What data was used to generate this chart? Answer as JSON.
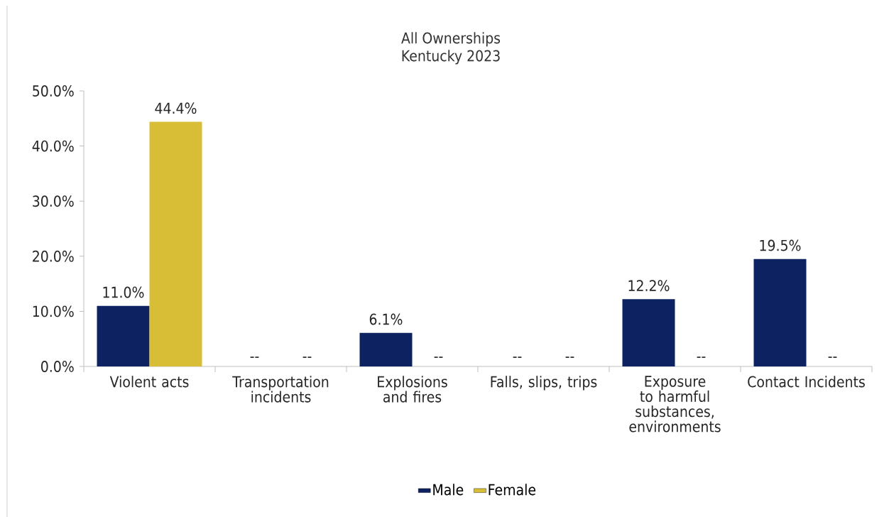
{
  "chart_data": {
    "type": "bar",
    "title": "All Ownerships",
    "subtitle": "Kentucky 2023",
    "categories": [
      "Violent acts",
      "Transportation incidents",
      "Explosions and fires",
      "Falls, slips, trips",
      "Exposure to harmful substances, environments",
      "Contact Incidents"
    ],
    "series": [
      {
        "name": "Male",
        "color": "#0d2260",
        "values": [
          11.0,
          null,
          6.1,
          null,
          12.2,
          19.5
        ],
        "value_labels": [
          "11.0%",
          "--",
          "6.1%",
          "--",
          "12.2%",
          "19.5%"
        ]
      },
      {
        "name": "Female",
        "color": "#d8be36",
        "values": [
          44.4,
          null,
          null,
          null,
          null,
          null
        ],
        "value_labels": [
          "44.4%",
          "--",
          "--",
          "--",
          "--",
          "--"
        ]
      }
    ],
    "ylim": [
      0,
      50
    ],
    "yticks": [
      {
        "value": 0,
        "label": "0.0%"
      },
      {
        "value": 10,
        "label": "10.0%"
      },
      {
        "value": 20,
        "label": "20.0%"
      },
      {
        "value": 30,
        "label": "30.0%"
      },
      {
        "value": 40,
        "label": "40.0%"
      },
      {
        "value": 50,
        "label": "50.0%"
      }
    ],
    "grid": false,
    "legend": "bottom"
  }
}
